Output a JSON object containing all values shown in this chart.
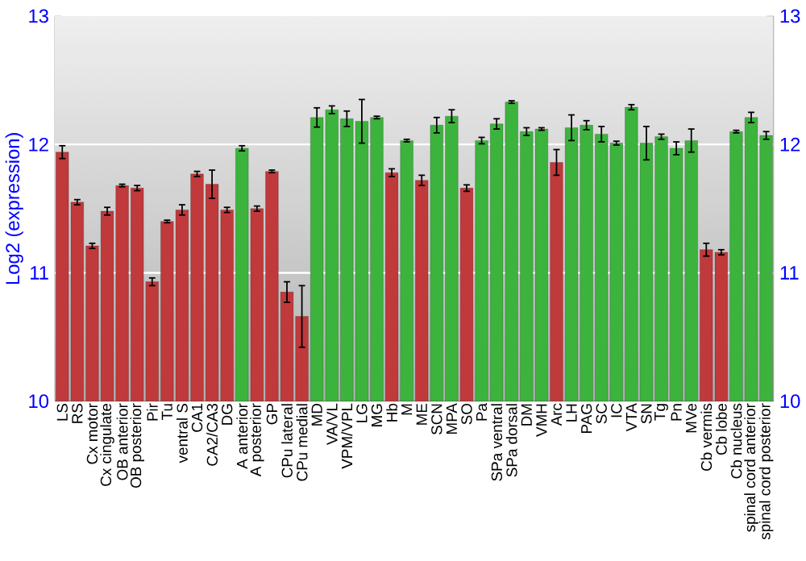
{
  "chart_data": {
    "type": "bar",
    "ylabel": "Log2 (expression)",
    "categories": [
      "LS",
      "RS",
      "Cx motor",
      "Cx cingulate",
      "OB anterior",
      "OB posterior",
      "Pir",
      "Tu",
      "ventral S",
      "CA1",
      "CA2/CA3",
      "DG",
      "A anterior",
      "A posterior",
      "GP",
      "CPu lateral",
      "CPu medial",
      "MD",
      "VA/VL",
      "VPM/VPL",
      "LG",
      "MG",
      "Hb",
      "M",
      "ME",
      "SCN",
      "MPA",
      "SO",
      "Pa",
      "SPa ventral",
      "SPa dorsal",
      "DM",
      "VMH",
      "Arc",
      "LH",
      "PAG",
      "SC",
      "IC",
      "VTA",
      "SN",
      "Tg",
      "Pn",
      "MVe",
      "Cb vermis",
      "Cb lobe",
      "Cb nucleus",
      "spinal cord anterior",
      "spinal cord posterior"
    ],
    "values": [
      11.94,
      11.55,
      11.21,
      11.48,
      11.68,
      11.66,
      10.93,
      11.4,
      11.49,
      11.77,
      11.69,
      11.49,
      11.97,
      11.5,
      11.79,
      10.85,
      10.66,
      12.21,
      12.27,
      12.2,
      12.18,
      12.21,
      11.78,
      12.03,
      11.72,
      12.15,
      12.22,
      11.66,
      12.03,
      12.16,
      12.33,
      12.1,
      12.12,
      11.86,
      12.13,
      12.15,
      12.08,
      12.01,
      12.29,
      12.01,
      12.06,
      11.97,
      12.03,
      11.18,
      11.16,
      12.1,
      12.21,
      12.07
    ],
    "errors": [
      0.05,
      0.02,
      0.02,
      0.03,
      0.01,
      0.02,
      0.03,
      0.01,
      0.04,
      0.02,
      0.11,
      0.02,
      0.02,
      0.02,
      0.01,
      0.08,
      0.24,
      0.075,
      0.03,
      0.06,
      0.17,
      0.01,
      0.03,
      0.01,
      0.04,
      0.06,
      0.05,
      0.025,
      0.025,
      0.04,
      0.01,
      0.03,
      0.01,
      0.1,
      0.1,
      0.035,
      0.06,
      0.015,
      0.02,
      0.13,
      0.02,
      0.05,
      0.09,
      0.05,
      0.02,
      0.01,
      0.04,
      0.03
    ],
    "colors": [
      "#c0393b",
      "#c0393b",
      "#c0393b",
      "#c0393b",
      "#c0393b",
      "#c0393b",
      "#c0393b",
      "#c0393b",
      "#c0393b",
      "#c0393b",
      "#c0393b",
      "#c0393b",
      "#3cb33c",
      "#c0393b",
      "#c0393b",
      "#c0393b",
      "#c0393b",
      "#3cb33c",
      "#3cb33c",
      "#3cb33c",
      "#3cb33c",
      "#3cb33c",
      "#c0393b",
      "#3cb33c",
      "#c0393b",
      "#3cb33c",
      "#3cb33c",
      "#c0393b",
      "#3cb33c",
      "#3cb33c",
      "#3cb33c",
      "#3cb33c",
      "#3cb33c",
      "#c0393b",
      "#3cb33c",
      "#3cb33c",
      "#3cb33c",
      "#3cb33c",
      "#3cb33c",
      "#3cb33c",
      "#3cb33c",
      "#3cb33c",
      "#3cb33c",
      "#c0393b",
      "#c0393b",
      "#3cb33c",
      "#3cb33c",
      "#3cb33c"
    ],
    "ylim": [
      10,
      13
    ],
    "yticks": [
      10,
      11,
      12,
      13
    ],
    "y2lim": [
      10,
      13
    ],
    "y2ticks": [
      10,
      11,
      12,
      13
    ],
    "grid": "y"
  }
}
